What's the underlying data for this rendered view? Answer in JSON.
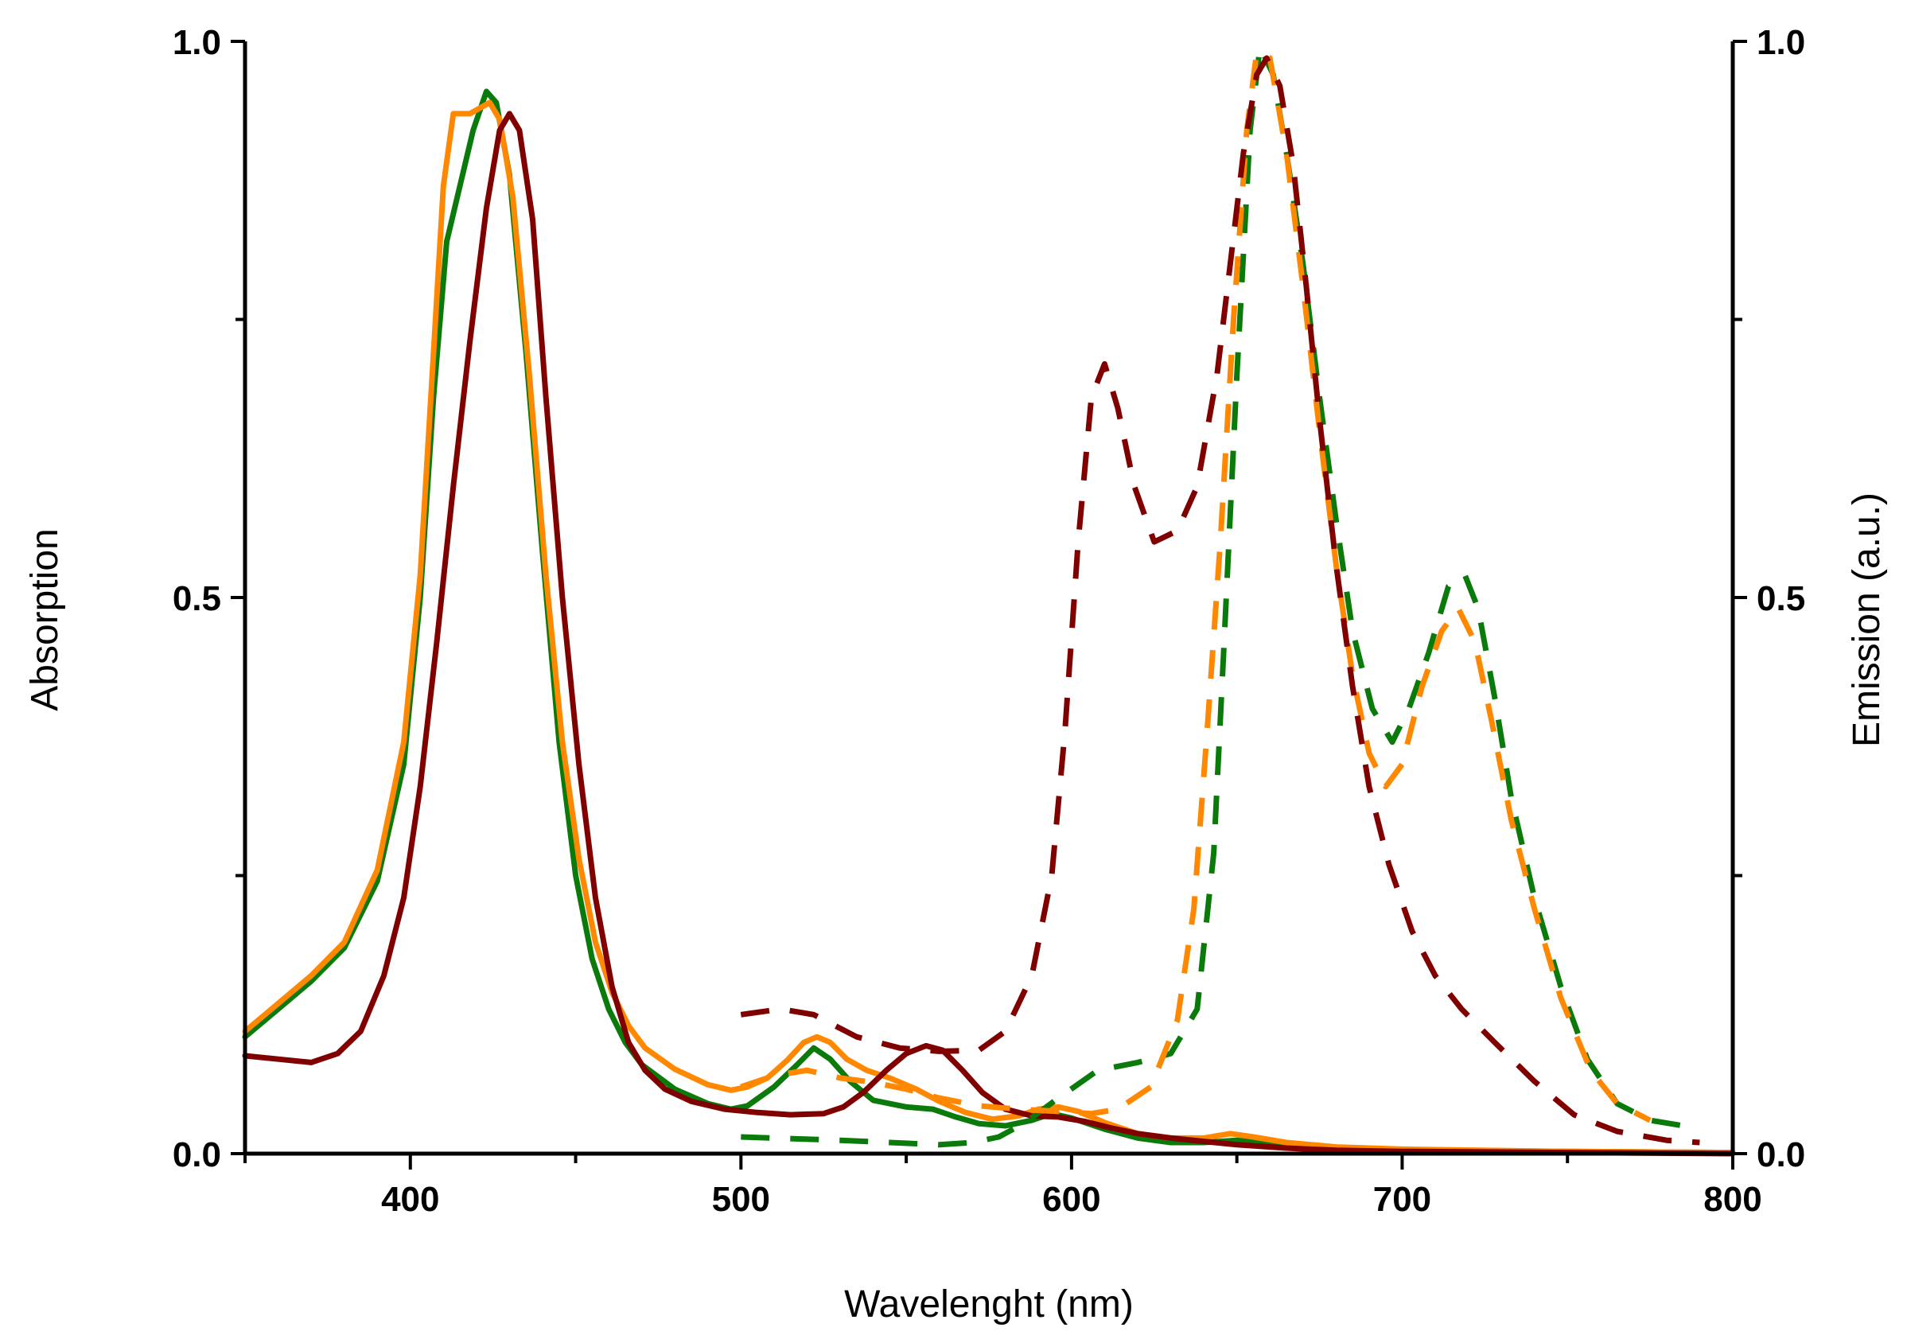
{
  "chart_data": {
    "type": "line",
    "title": "",
    "xlabel": "Wavelenght (nm)",
    "ylabel": "Absorption",
    "y2label": "Emission (a.u.)",
    "xlim": [
      350,
      800
    ],
    "ylim": [
      0,
      1.0
    ],
    "y2lim": [
      0,
      1.0
    ],
    "xticks": [
      {
        "value": 400,
        "label": "400"
      },
      {
        "value": 500,
        "label": "500"
      },
      {
        "value": 600,
        "label": "600"
      },
      {
        "value": 700,
        "label": "700"
      },
      {
        "value": 800,
        "label": "800"
      }
    ],
    "yticks": [
      {
        "value": 0.0,
        "label": "0.0"
      },
      {
        "value": 0.5,
        "label": "0.5"
      },
      {
        "value": 1.0,
        "label": "1.0"
      }
    ],
    "y2ticks": [
      {
        "value": 0.0,
        "label": "0.0"
      },
      {
        "value": 0.5,
        "label": "0.5"
      },
      {
        "value": 1.0,
        "label": "1.0"
      }
    ],
    "series": [
      {
        "name": "green-absorption",
        "color": "#0a7a0a",
        "style": "solid",
        "axis": "left",
        "points": [
          [
            350,
            0.105
          ],
          [
            360,
            0.13
          ],
          [
            370,
            0.155
          ],
          [
            380,
            0.185
          ],
          [
            390,
            0.245
          ],
          [
            398,
            0.35
          ],
          [
            403,
            0.5
          ],
          [
            407,
            0.68
          ],
          [
            411,
            0.82
          ],
          [
            415,
            0.87
          ],
          [
            419,
            0.92
          ],
          [
            423,
            0.955
          ],
          [
            426,
            0.945
          ],
          [
            430,
            0.88
          ],
          [
            435,
            0.72
          ],
          [
            440,
            0.54
          ],
          [
            445,
            0.37
          ],
          [
            450,
            0.25
          ],
          [
            455,
            0.175
          ],
          [
            460,
            0.13
          ],
          [
            465,
            0.1
          ],
          [
            470,
            0.08
          ],
          [
            480,
            0.058
          ],
          [
            490,
            0.045
          ],
          [
            497,
            0.04
          ],
          [
            502,
            0.043
          ],
          [
            510,
            0.06
          ],
          [
            517,
            0.08
          ],
          [
            522,
            0.095
          ],
          [
            527,
            0.085
          ],
          [
            533,
            0.065
          ],
          [
            540,
            0.048
          ],
          [
            550,
            0.042
          ],
          [
            558,
            0.04
          ],
          [
            565,
            0.033
          ],
          [
            572,
            0.027
          ],
          [
            580,
            0.025
          ],
          [
            588,
            0.03
          ],
          [
            594,
            0.036
          ],
          [
            600,
            0.032
          ],
          [
            610,
            0.022
          ],
          [
            620,
            0.014
          ],
          [
            630,
            0.01
          ],
          [
            640,
            0.01
          ],
          [
            650,
            0.012
          ],
          [
            660,
            0.009
          ],
          [
            670,
            0.006
          ],
          [
            680,
            0.004
          ],
          [
            700,
            0.003
          ],
          [
            750,
            0.002
          ],
          [
            800,
            0.001
          ]
        ]
      },
      {
        "name": "orange-absorption",
        "color": "#ff8800",
        "style": "solid",
        "axis": "left",
        "points": [
          [
            350,
            0.11
          ],
          [
            360,
            0.135
          ],
          [
            370,
            0.16
          ],
          [
            380,
            0.19
          ],
          [
            390,
            0.255
          ],
          [
            398,
            0.37
          ],
          [
            403,
            0.52
          ],
          [
            407,
            0.72
          ],
          [
            410,
            0.87
          ],
          [
            413,
            0.935
          ],
          [
            418,
            0.935
          ],
          [
            421,
            0.94
          ],
          [
            424,
            0.945
          ],
          [
            427,
            0.93
          ],
          [
            431,
            0.86
          ],
          [
            436,
            0.7
          ],
          [
            441,
            0.52
          ],
          [
            446,
            0.37
          ],
          [
            451,
            0.265
          ],
          [
            456,
            0.19
          ],
          [
            461,
            0.145
          ],
          [
            466,
            0.115
          ],
          [
            471,
            0.095
          ],
          [
            480,
            0.076
          ],
          [
            490,
            0.062
          ],
          [
            497,
            0.057
          ],
          [
            502,
            0.06
          ],
          [
            508,
            0.068
          ],
          [
            514,
            0.084
          ],
          [
            519,
            0.1
          ],
          [
            523,
            0.105
          ],
          [
            527,
            0.1
          ],
          [
            532,
            0.085
          ],
          [
            538,
            0.075
          ],
          [
            545,
            0.068
          ],
          [
            553,
            0.058
          ],
          [
            560,
            0.047
          ],
          [
            568,
            0.037
          ],
          [
            576,
            0.031
          ],
          [
            584,
            0.034
          ],
          [
            590,
            0.04
          ],
          [
            596,
            0.042
          ],
          [
            602,
            0.038
          ],
          [
            610,
            0.028
          ],
          [
            620,
            0.018
          ],
          [
            630,
            0.014
          ],
          [
            640,
            0.014
          ],
          [
            648,
            0.018
          ],
          [
            655,
            0.015
          ],
          [
            665,
            0.01
          ],
          [
            680,
            0.006
          ],
          [
            700,
            0.004
          ],
          [
            750,
            0.002
          ],
          [
            800,
            0.001
          ]
        ]
      },
      {
        "name": "darkred-absorption",
        "color": "#800000",
        "style": "solid",
        "axis": "left",
        "points": [
          [
            350,
            0.088
          ],
          [
            360,
            0.085
          ],
          [
            370,
            0.082
          ],
          [
            378,
            0.09
          ],
          [
            385,
            0.11
          ],
          [
            392,
            0.16
          ],
          [
            398,
            0.23
          ],
          [
            403,
            0.33
          ],
          [
            408,
            0.46
          ],
          [
            413,
            0.6
          ],
          [
            418,
            0.73
          ],
          [
            423,
            0.85
          ],
          [
            427,
            0.92
          ],
          [
            430,
            0.935
          ],
          [
            433,
            0.92
          ],
          [
            437,
            0.84
          ],
          [
            441,
            0.68
          ],
          [
            446,
            0.5
          ],
          [
            451,
            0.35
          ],
          [
            456,
            0.23
          ],
          [
            461,
            0.15
          ],
          [
            466,
            0.1
          ],
          [
            471,
            0.075
          ],
          [
            477,
            0.058
          ],
          [
            485,
            0.047
          ],
          [
            495,
            0.04
          ],
          [
            505,
            0.037
          ],
          [
            515,
            0.035
          ],
          [
            525,
            0.036
          ],
          [
            531,
            0.042
          ],
          [
            537,
            0.055
          ],
          [
            544,
            0.075
          ],
          [
            550,
            0.09
          ],
          [
            556,
            0.097
          ],
          [
            561,
            0.093
          ],
          [
            567,
            0.075
          ],
          [
            573,
            0.055
          ],
          [
            580,
            0.04
          ],
          [
            588,
            0.034
          ],
          [
            596,
            0.033
          ],
          [
            604,
            0.029
          ],
          [
            612,
            0.023
          ],
          [
            620,
            0.018
          ],
          [
            630,
            0.014
          ],
          [
            640,
            0.011
          ],
          [
            650,
            0.008
          ],
          [
            665,
            0.005
          ],
          [
            680,
            0.003
          ],
          [
            700,
            0.002
          ],
          [
            750,
            0.001
          ],
          [
            800,
            0.0
          ]
        ]
      },
      {
        "name": "green-emission",
        "color": "#0a7a0a",
        "style": "dashed",
        "axis": "right",
        "points": [
          [
            500,
            0.015
          ],
          [
            530,
            0.012
          ],
          [
            545,
            0.01
          ],
          [
            560,
            0.008
          ],
          [
            570,
            0.01
          ],
          [
            578,
            0.015
          ],
          [
            586,
            0.028
          ],
          [
            596,
            0.05
          ],
          [
            608,
            0.075
          ],
          [
            620,
            0.082
          ],
          [
            630,
            0.09
          ],
          [
            638,
            0.13
          ],
          [
            643,
            0.27
          ],
          [
            646,
            0.45
          ],
          [
            650,
            0.7
          ],
          [
            654,
            0.92
          ],
          [
            657,
            0.995
          ],
          [
            661,
            0.97
          ],
          [
            665,
            0.9
          ],
          [
            670,
            0.8
          ],
          [
            675,
            0.68
          ],
          [
            680,
            0.57
          ],
          [
            685,
            0.47
          ],
          [
            691,
            0.4
          ],
          [
            697,
            0.37
          ],
          [
            702,
            0.4
          ],
          [
            708,
            0.45
          ],
          [
            714,
            0.51
          ],
          [
            719,
            0.52
          ],
          [
            723,
            0.49
          ],
          [
            728,
            0.41
          ],
          [
            733,
            0.32
          ],
          [
            740,
            0.23
          ],
          [
            748,
            0.15
          ],
          [
            756,
            0.085
          ],
          [
            765,
            0.045
          ],
          [
            775,
            0.03
          ],
          [
            785,
            0.025
          ]
        ]
      },
      {
        "name": "orange-emission",
        "color": "#ff8800",
        "style": "dashed",
        "axis": "right",
        "points": [
          [
            500,
            0.06
          ],
          [
            510,
            0.07
          ],
          [
            520,
            0.075
          ],
          [
            530,
            0.068
          ],
          [
            540,
            0.064
          ],
          [
            550,
            0.058
          ],
          [
            560,
            0.05
          ],
          [
            572,
            0.043
          ],
          [
            584,
            0.04
          ],
          [
            596,
            0.038
          ],
          [
            606,
            0.036
          ],
          [
            614,
            0.04
          ],
          [
            624,
            0.06
          ],
          [
            632,
            0.12
          ],
          [
            637,
            0.22
          ],
          [
            641,
            0.38
          ],
          [
            645,
            0.55
          ],
          [
            649,
            0.75
          ],
          [
            653,
            0.92
          ],
          [
            656,
            0.99
          ],
          [
            660,
            0.985
          ],
          [
            665,
            0.9
          ],
          [
            670,
            0.78
          ],
          [
            675,
            0.65
          ],
          [
            680,
            0.53
          ],
          [
            685,
            0.43
          ],
          [
            690,
            0.36
          ],
          [
            695,
            0.33
          ],
          [
            700,
            0.35
          ],
          [
            706,
            0.42
          ],
          [
            712,
            0.47
          ],
          [
            717,
            0.49
          ],
          [
            722,
            0.46
          ],
          [
            727,
            0.39
          ],
          [
            733,
            0.3
          ],
          [
            740,
            0.22
          ],
          [
            748,
            0.14
          ],
          [
            757,
            0.075
          ],
          [
            765,
            0.045
          ],
          [
            775,
            0.03
          ]
        ]
      },
      {
        "name": "darkred-emission",
        "color": "#800000",
        "style": "dashed",
        "axis": "right",
        "points": [
          [
            500,
            0.125
          ],
          [
            512,
            0.13
          ],
          [
            522,
            0.125
          ],
          [
            535,
            0.105
          ],
          [
            548,
            0.095
          ],
          [
            560,
            0.092
          ],
          [
            572,
            0.093
          ],
          [
            580,
            0.11
          ],
          [
            588,
            0.16
          ],
          [
            594,
            0.25
          ],
          [
            598,
            0.38
          ],
          [
            602,
            0.55
          ],
          [
            606,
            0.68
          ],
          [
            610,
            0.71
          ],
          [
            614,
            0.67
          ],
          [
            619,
            0.6
          ],
          [
            625,
            0.55
          ],
          [
            632,
            0.56
          ],
          [
            638,
            0.6
          ],
          [
            644,
            0.7
          ],
          [
            648,
            0.8
          ],
          [
            652,
            0.9
          ],
          [
            656,
            0.97
          ],
          [
            659,
            0.985
          ],
          [
            663,
            0.96
          ],
          [
            667,
            0.89
          ],
          [
            671,
            0.78
          ],
          [
            675,
            0.66
          ],
          [
            680,
            0.53
          ],
          [
            685,
            0.42
          ],
          [
            690,
            0.33
          ],
          [
            696,
            0.26
          ],
          [
            703,
            0.2
          ],
          [
            710,
            0.16
          ],
          [
            718,
            0.13
          ],
          [
            728,
            0.1
          ],
          [
            740,
            0.065
          ],
          [
            752,
            0.035
          ],
          [
            765,
            0.02
          ],
          [
            780,
            0.012
          ],
          [
            790,
            0.01
          ]
        ]
      }
    ]
  }
}
